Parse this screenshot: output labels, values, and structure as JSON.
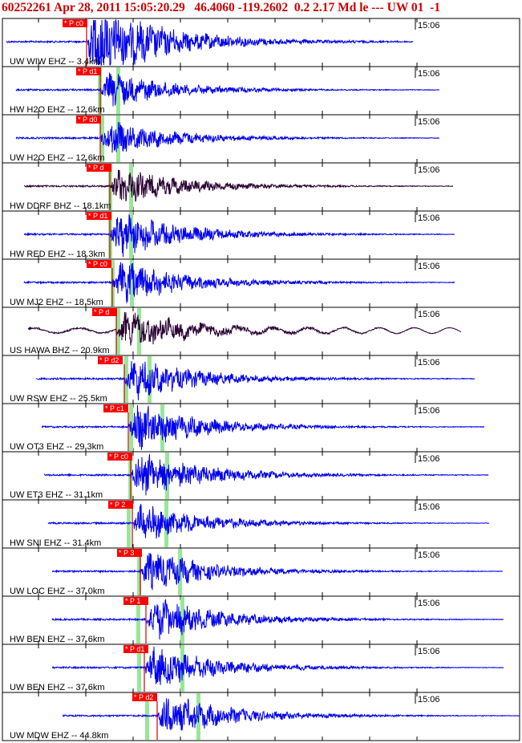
{
  "header": {
    "text": "60252261 Apr 28, 2011 15:05:20.29   46.4060 -119.2602  0.2 2.17 Md le --- UW 01  -1"
  },
  "colors": {
    "header_text": "#cc0000",
    "trace_blue": "#0000ee",
    "trace_dark": "#2a0033",
    "pick_box": "#ff0000",
    "pick_line": "#cc0000",
    "phase_marker": "#99e699",
    "frame": "#000000"
  },
  "time_label": "15:06",
  "chart_data": {
    "type": "seismogram",
    "event_id": "60252261",
    "origin_time": "Apr 28, 2011 15:05:20.29",
    "latitude": 46.406,
    "longitude": -119.2602,
    "magnitude": 2.17,
    "magnitude_type": "Md",
    "channels": [
      {
        "label": "UW WIW EHZ -- 3.4km",
        "pick": "P c0",
        "color": "blue",
        "amp": 1.6
      },
      {
        "label": "HW H2O EHZ -- 12.6km",
        "pick": "P d1",
        "color": "blue",
        "amp": 0.7
      },
      {
        "label": "UW H2O EHZ -- 12.6km",
        "pick": "P d0",
        "color": "blue",
        "amp": 0.7
      },
      {
        "label": "HW DDRF BHZ -- 18.1km",
        "pick": "P d",
        "color": "dark",
        "amp": 0.75
      },
      {
        "label": "HW RED EHZ -- 18.3km",
        "pick": "P d1",
        "color": "blue",
        "amp": 0.9
      },
      {
        "label": "UW MJ2 EHZ -- 18.5km",
        "pick": "P c0",
        "color": "blue",
        "amp": 0.85
      },
      {
        "label": "US HAWA BHZ -- 20.9km",
        "pick": "P d",
        "color": "dark",
        "amp": 0.75
      },
      {
        "label": "UW RSW EHZ -- 25.5km",
        "pick": "P d2",
        "color": "blue",
        "amp": 0.85
      },
      {
        "label": "UW OT3 EHZ -- 29.3km",
        "pick": "P c1",
        "color": "blue",
        "amp": 0.9
      },
      {
        "label": "UW ET3 EHZ -- 31.1km",
        "pick": "P c0",
        "color": "blue",
        "amp": 0.95
      },
      {
        "label": "HW SNI EHZ -- 31.4km",
        "pick": "P 2",
        "color": "blue",
        "amp": 0.75
      },
      {
        "label": "UW LOC EHZ -- 37.0km",
        "pick": "P 3",
        "color": "blue",
        "amp": 0.8
      },
      {
        "label": "HW BEN EHZ -- 37.6km",
        "pick": "P 1",
        "color": "blue",
        "amp": 0.85
      },
      {
        "label": "UW BEN EHZ -- 37.6km",
        "pick": "P d1",
        "color": "blue",
        "amp": 0.85
      },
      {
        "label": "UW MDW EHZ -- 44.8km",
        "pick": "P d2",
        "color": "blue",
        "amp": 0.85
      }
    ]
  }
}
